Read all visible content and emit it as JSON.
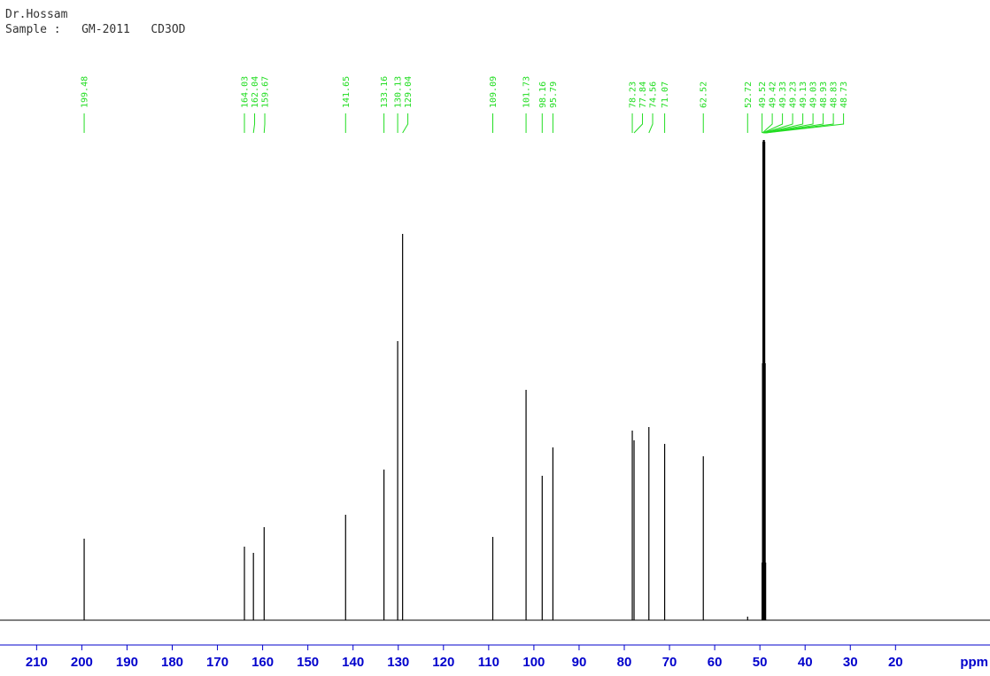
{
  "chart_data": {
    "type": "spectrum",
    "title": "Dr.Hossam",
    "subtitle": "Sample :   GM-2011   CD3OD",
    "x": [
      199.48,
      164.03,
      162.04,
      159.67,
      141.65,
      133.16,
      130.13,
      129.04,
      109.09,
      101.73,
      98.16,
      95.79,
      78.23,
      77.84,
      74.56,
      71.07,
      62.52,
      52.72,
      49.52,
      49.42,
      49.33,
      49.23,
      49.13,
      49.03,
      48.93,
      48.83,
      48.73
    ],
    "values": [
      92,
      83,
      76,
      105,
      119,
      170,
      315,
      436,
      94,
      260,
      163,
      195,
      214,
      203,
      218,
      199,
      185,
      4,
      65,
      290,
      540,
      542,
      542,
      542,
      540,
      290,
      65
    ],
    "color": "#000000",
    "label_color": "#22dd22",
    "axis_color": "#0000cc",
    "xlabel": "ppm",
    "xlim": [
      218.1,
      -0.9
    ],
    "xticks": [
      210,
      200,
      190,
      180,
      170,
      160,
      150,
      140,
      130,
      120,
      110,
      100,
      90,
      80,
      70,
      60,
      50,
      40,
      30,
      20
    ],
    "ylim": [
      0,
      560
    ]
  }
}
